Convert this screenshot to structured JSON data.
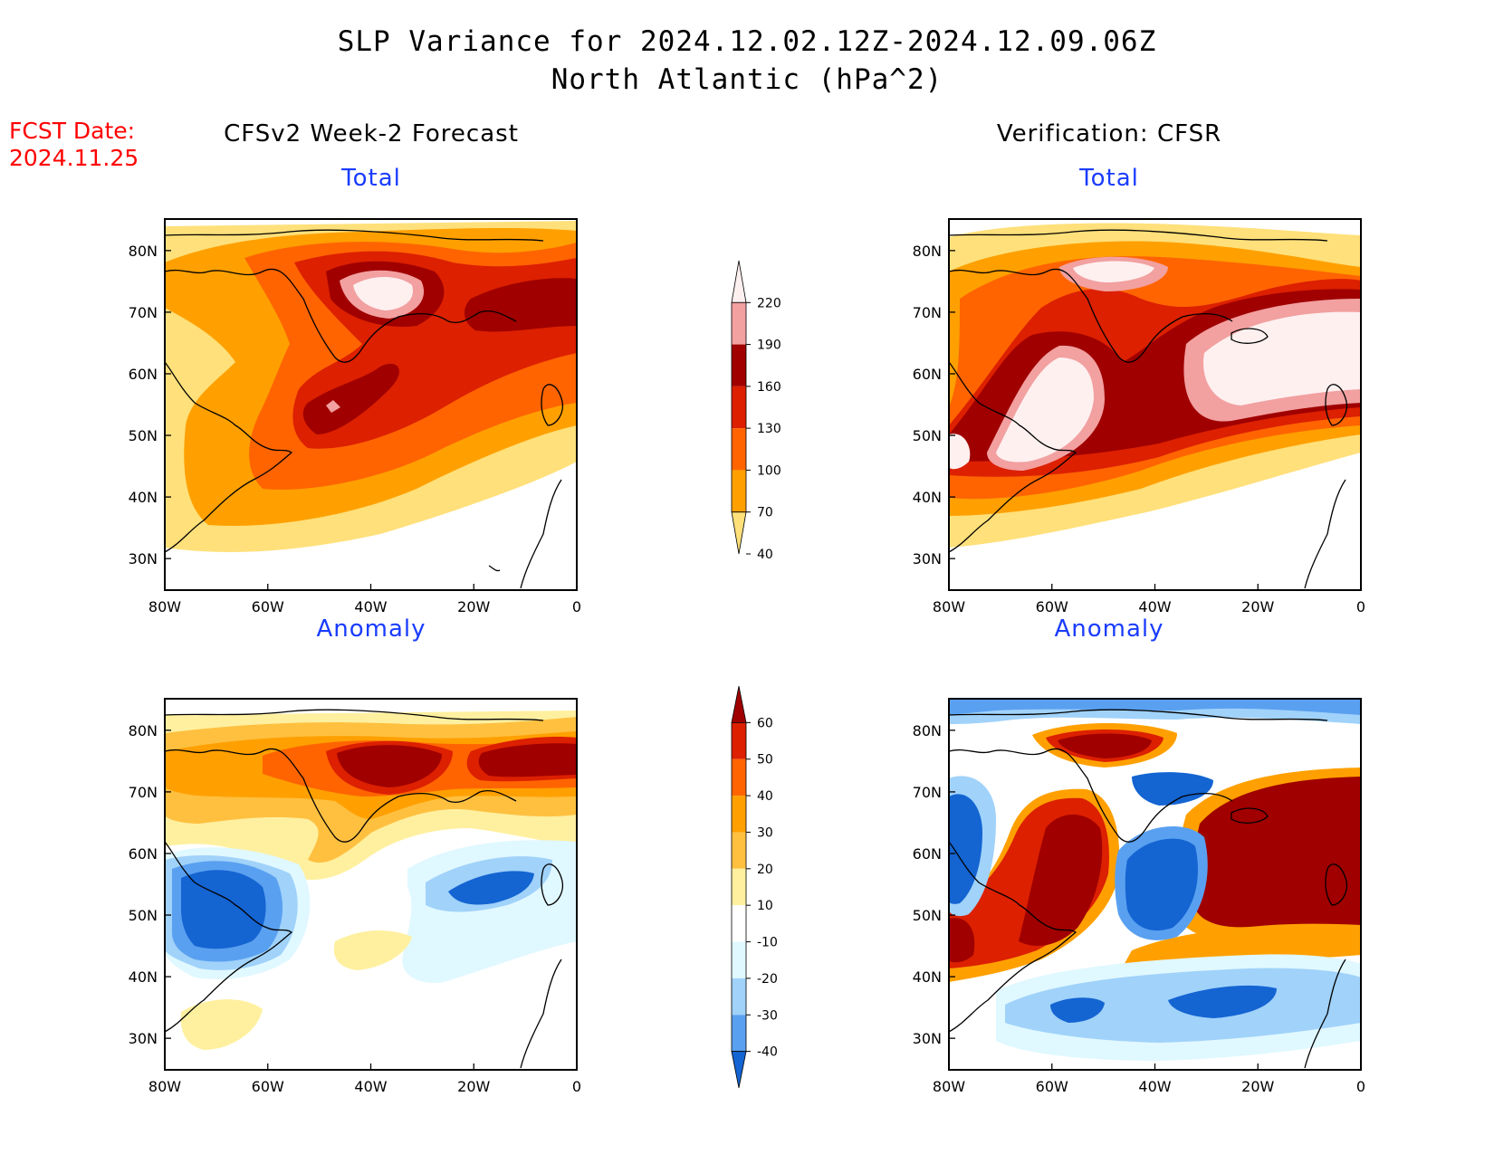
{
  "title": {
    "line1": "SLP Variance for 2024.12.02.12Z-2024.12.09.06Z",
    "line2": "North Atlantic (hPa^2)"
  },
  "fcst_date": {
    "label": "FCST Date:",
    "value": "2024.11.25"
  },
  "columns": {
    "left": "CFSv2 Week-2 Forecast",
    "right": "Verification: CFSR"
  },
  "panels": {
    "total_label": "Total",
    "anomaly_label": "Anomaly"
  },
  "axes": {
    "lat_ticks": [
      "80N",
      "70N",
      "60N",
      "50N",
      "40N",
      "30N"
    ],
    "lon_ticks": [
      "80W",
      "60W",
      "40W",
      "20W",
      "0"
    ]
  },
  "colorbars": {
    "total": {
      "levels": [
        "220",
        "190",
        "160",
        "130",
        "100",
        "70",
        "40"
      ],
      "colors": [
        "#fff0f0",
        "#f2a0a0",
        "#a00000",
        "#dc2000",
        "#ff6400",
        "#ffa000",
        "#ffe07a"
      ]
    },
    "anomaly": {
      "levels": [
        "60",
        "50",
        "40",
        "30",
        "20",
        "10",
        "-10",
        "-20",
        "-30",
        "-40"
      ],
      "colors": [
        "#a00000",
        "#dc2000",
        "#ff6400",
        "#ffa000",
        "#ffc040",
        "#fff0a0",
        "#ffffff",
        "#e0f8ff",
        "#a0d2fa",
        "#5aa0f0",
        "#1464d2"
      ]
    }
  },
  "colors": {
    "fcst_red": "#ff0000",
    "subtitle_blue": "#1a3cff"
  }
}
